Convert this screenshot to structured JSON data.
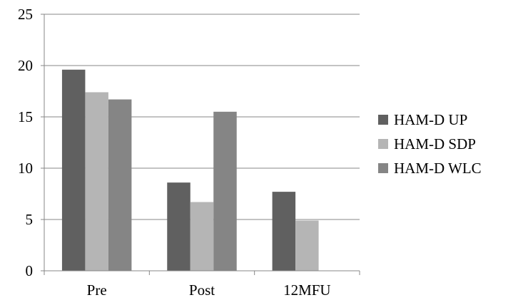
{
  "chart_data": {
    "type": "bar",
    "categories": [
      "Pre",
      "Post",
      "12MFU"
    ],
    "series": [
      {
        "name": "HAM-D UP",
        "values": [
          19.6,
          8.6,
          7.7
        ],
        "color": "#606060"
      },
      {
        "name": "HAM-D SDP",
        "values": [
          17.4,
          6.7,
          4.9
        ],
        "color": "#b5b5b5"
      },
      {
        "name": "HAM-D WLC",
        "values": [
          16.7,
          15.5,
          null
        ],
        "color": "#858585"
      }
    ],
    "title": "",
    "xlabel": "",
    "ylabel": "",
    "ylim": [
      0,
      25
    ],
    "yticks": [
      "0",
      "5",
      "10",
      "15",
      "20",
      "25"
    ],
    "grid": true,
    "legend_position": "right"
  }
}
